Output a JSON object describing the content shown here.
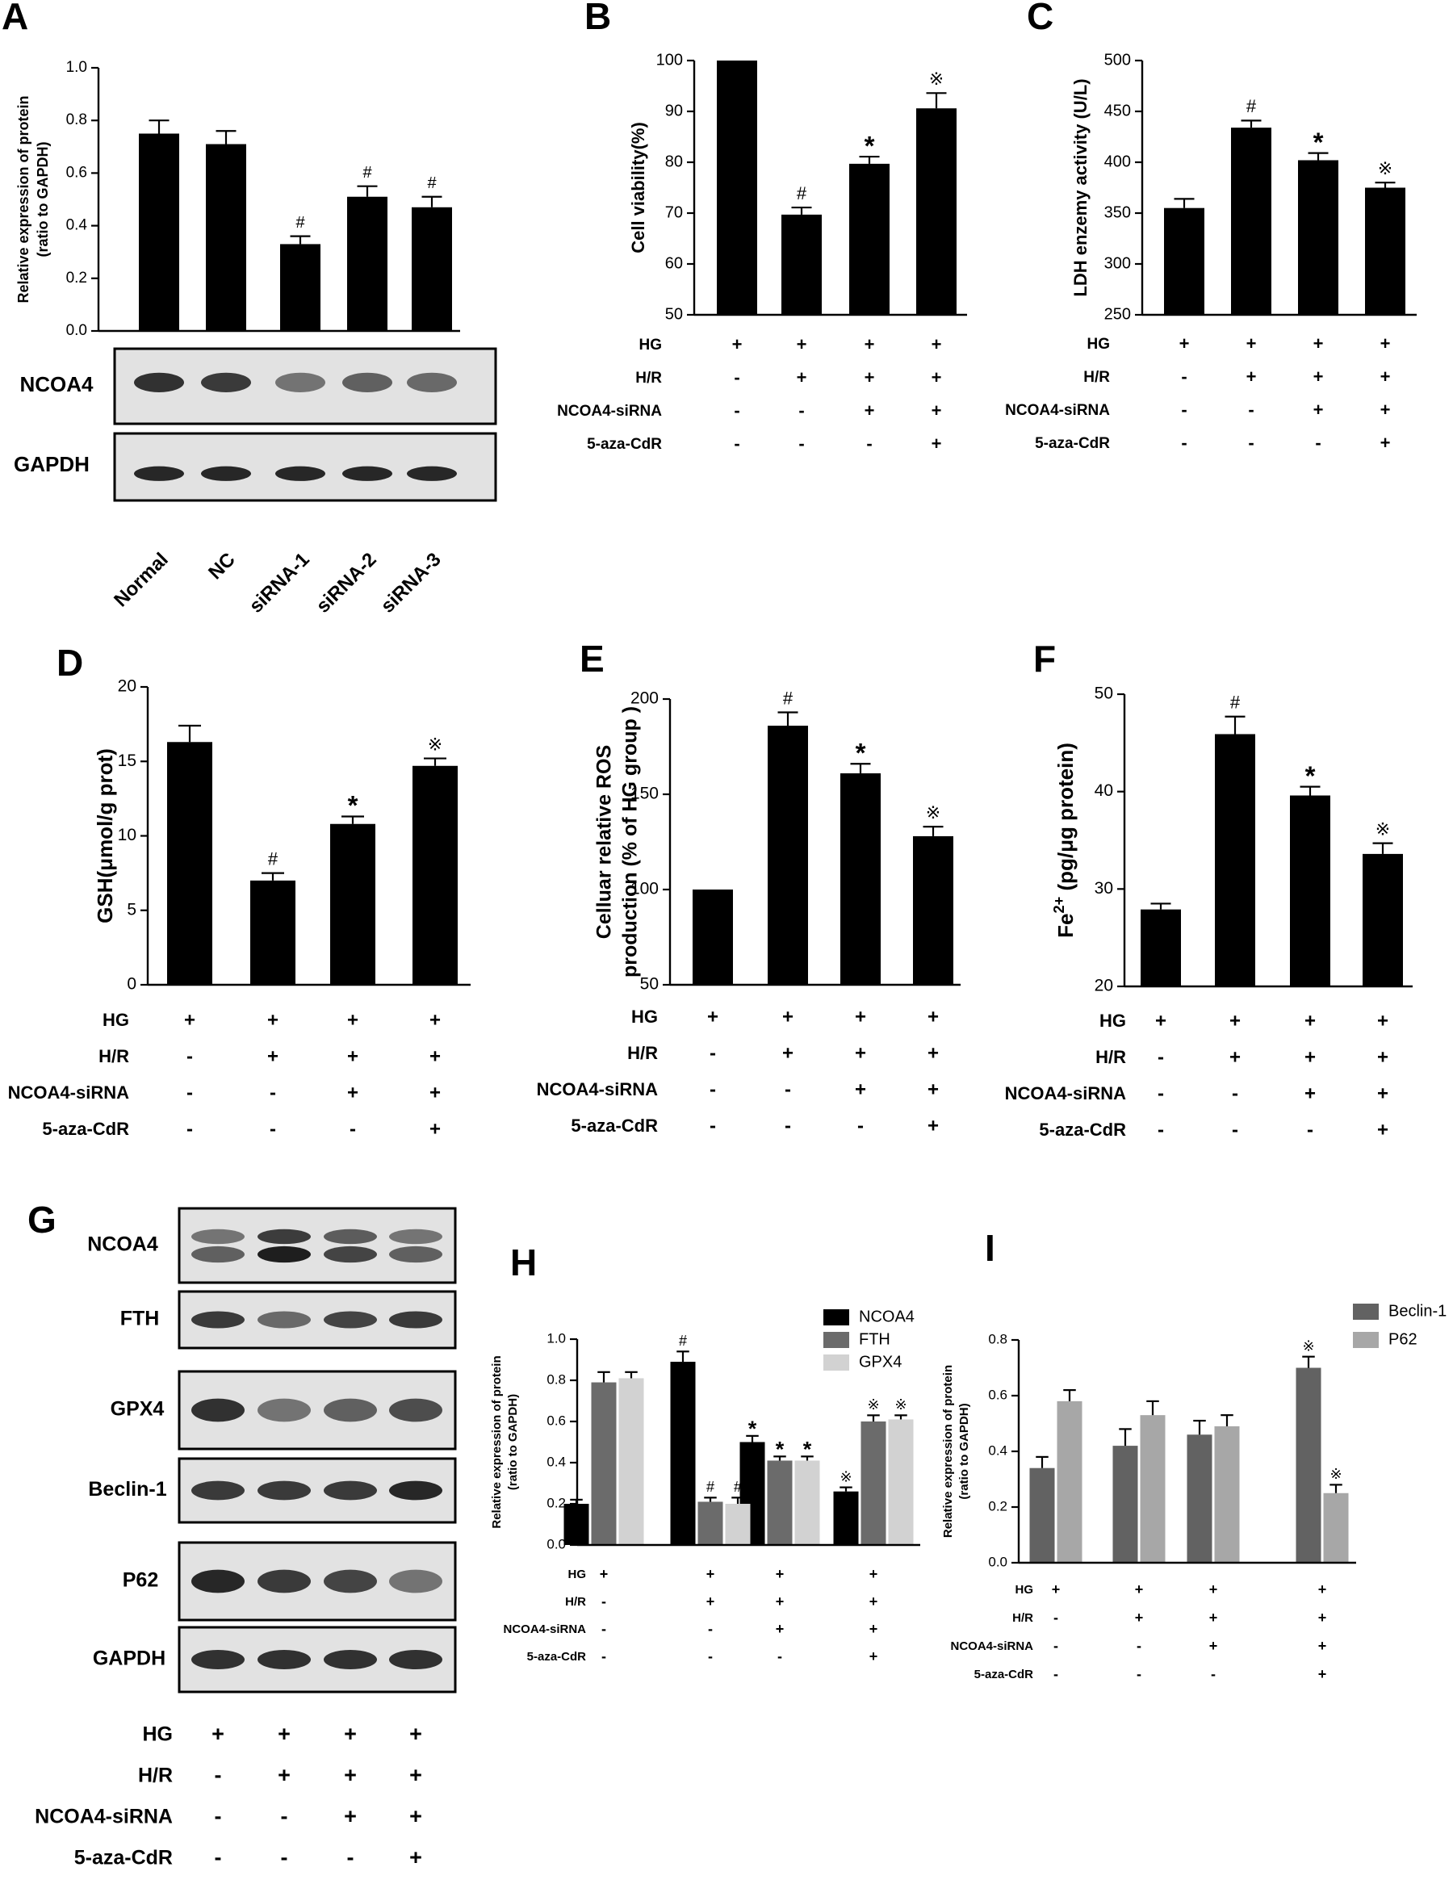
{
  "chart_data": [
    {
      "panel": "A",
      "type": "bar",
      "ylabel_lines": [
        "Relative expression of protein",
        "(ratio to GAPDH)"
      ],
      "ylim": [
        0,
        1.0
      ],
      "yticks": [
        "0.0",
        "0.2",
        "0.4",
        "0.6",
        "0.8",
        "1.0"
      ],
      "categories": [
        "Normal",
        "NC",
        "siRNA-1",
        "siRNA-2",
        "siRNA-3"
      ],
      "values": [
        0.75,
        0.71,
        0.33,
        0.51,
        0.47
      ],
      "errors": [
        0.05,
        0.05,
        0.03,
        0.04,
        0.04
      ],
      "annotations": [
        "",
        "",
        "#",
        "#",
        "#"
      ],
      "color": "#000000",
      "blots": [
        {
          "label": "NCOA4",
          "intensity": [
            0.85,
            0.8,
            0.5,
            0.6,
            0.55
          ]
        },
        {
          "label": "GAPDH",
          "intensity": [
            0.9,
            0.9,
            0.9,
            0.9,
            0.9
          ]
        }
      ]
    },
    {
      "panel": "B",
      "type": "bar",
      "ylabel": "Cell viability(%)",
      "ylim": [
        50,
        100
      ],
      "yticks": [
        "50",
        "60",
        "70",
        "80",
        "90",
        "100"
      ],
      "values": [
        100,
        69.7,
        79.7,
        90.6
      ],
      "errors": [
        0,
        1.4,
        1.4,
        3
      ],
      "annotations": [
        "",
        "#",
        "*",
        "※"
      ],
      "color": "#000000",
      "conditions": [
        {
          "label": "HG",
          "marks": [
            "+",
            "+",
            "+",
            "+"
          ]
        },
        {
          "label": "H/R",
          "marks": [
            "-",
            "+",
            "+",
            "+"
          ]
        },
        {
          "label": "NCOA4-siRNA",
          "marks": [
            "-",
            "-",
            "+",
            "+"
          ]
        },
        {
          "label": "5-aza-CdR",
          "marks": [
            "-",
            "-",
            "-",
            "+"
          ]
        }
      ]
    },
    {
      "panel": "C",
      "type": "bar",
      "ylabel": "LDH enzemy activity (U/L)",
      "ylim": [
        250,
        500
      ],
      "yticks": [
        "250",
        "300",
        "350",
        "400",
        "450",
        "500"
      ],
      "values": [
        355,
        434,
        402,
        375
      ],
      "errors": [
        9,
        7,
        7,
        5
      ],
      "annotations": [
        "",
        "#",
        "*",
        "※"
      ],
      "color": "#000000",
      "conditions": [
        {
          "label": "HG",
          "marks": [
            "+",
            "+",
            "+",
            "+"
          ]
        },
        {
          "label": "H/R",
          "marks": [
            "-",
            "+",
            "+",
            "+"
          ]
        },
        {
          "label": "NCOA4-siRNA",
          "marks": [
            "-",
            "-",
            "+",
            "+"
          ]
        },
        {
          "label": "5-aza-CdR",
          "marks": [
            "-",
            "-",
            "-",
            "+"
          ]
        }
      ]
    },
    {
      "panel": "D",
      "type": "bar",
      "ylabel": "GSH(μmol/g prot)",
      "ylim": [
        0,
        20
      ],
      "yticks": [
        "0",
        "5",
        "10",
        "15",
        "20"
      ],
      "values": [
        16.3,
        7.0,
        10.8,
        14.7
      ],
      "errors": [
        1.1,
        0.5,
        0.5,
        0.5
      ],
      "annotations": [
        "",
        "#",
        "*",
        "※"
      ],
      "color": "#000000",
      "conditions": [
        {
          "label": "HG",
          "marks": [
            "+",
            "+",
            "+",
            "+"
          ]
        },
        {
          "label": "H/R",
          "marks": [
            "-",
            "+",
            "+",
            "+"
          ]
        },
        {
          "label": "NCOA4-siRNA",
          "marks": [
            "-",
            "-",
            "+",
            "+"
          ]
        },
        {
          "label": "5-aza-CdR",
          "marks": [
            "-",
            "-",
            "-",
            "+"
          ]
        }
      ]
    },
    {
      "panel": "E",
      "type": "bar",
      "ylabel_lines": [
        "Celluar relative ROS",
        "production (% of HG group )"
      ],
      "ylim": [
        50,
        200
      ],
      "yticks": [
        "50",
        "100",
        "150",
        "200"
      ],
      "values": [
        100,
        186,
        161,
        128
      ],
      "errors": [
        0,
        7,
        5,
        5
      ],
      "annotations": [
        "",
        "#",
        "*",
        "※"
      ],
      "color": "#000000",
      "conditions": [
        {
          "label": "HG",
          "marks": [
            "+",
            "+",
            "+",
            "+"
          ]
        },
        {
          "label": "H/R",
          "marks": [
            "-",
            "+",
            "+",
            "+"
          ]
        },
        {
          "label": "NCOA4-siRNA",
          "marks": [
            "-",
            "-",
            "+",
            "+"
          ]
        },
        {
          "label": "5-aza-CdR",
          "marks": [
            "-",
            "-",
            "-",
            "+"
          ]
        }
      ]
    },
    {
      "panel": "F",
      "type": "bar",
      "ylabel_parts": [
        "Fe",
        "2+",
        " (pg/μg protein)"
      ],
      "ylim": [
        20,
        50
      ],
      "yticks": [
        "20",
        "30",
        "40",
        "50"
      ],
      "values": [
        27.9,
        45.9,
        39.6,
        33.6
      ],
      "errors": [
        0.6,
        1.8,
        0.9,
        1.1
      ],
      "annotations": [
        "",
        "#",
        "*",
        "※"
      ],
      "color": "#000000",
      "conditions": [
        {
          "label": "HG",
          "marks": [
            "+",
            "+",
            "+",
            "+"
          ]
        },
        {
          "label": "H/R",
          "marks": [
            "-",
            "+",
            "+",
            "+"
          ]
        },
        {
          "label": "NCOA4-siRNA",
          "marks": [
            "-",
            "-",
            "+",
            "+"
          ]
        },
        {
          "label": "5-aza-CdR",
          "marks": [
            "-",
            "-",
            "-",
            "+"
          ]
        }
      ]
    },
    {
      "panel": "G",
      "type": "blot",
      "blots": [
        {
          "label": "NCOA4",
          "intensity": [
            0.6,
            0.95,
            0.75,
            0.6
          ]
        },
        {
          "label": "FTH",
          "intensity": [
            0.8,
            0.55,
            0.75,
            0.8
          ]
        },
        {
          "label": "GPX4",
          "intensity": [
            0.85,
            0.5,
            0.6,
            0.7
          ]
        },
        {
          "label": "Beclin-1",
          "intensity": [
            0.8,
            0.8,
            0.8,
            0.9
          ]
        },
        {
          "label": "P62",
          "intensity": [
            0.9,
            0.8,
            0.75,
            0.5
          ]
        },
        {
          "label": "GAPDH",
          "intensity": [
            0.85,
            0.85,
            0.85,
            0.85
          ]
        }
      ],
      "conditions": [
        {
          "label": "HG",
          "marks": [
            "+",
            "+",
            "+",
            "+"
          ]
        },
        {
          "label": "H/R",
          "marks": [
            "-",
            "+",
            "+",
            "+"
          ]
        },
        {
          "label": "NCOA4-siRNA",
          "marks": [
            "-",
            "-",
            "+",
            "+"
          ]
        },
        {
          "label": "5-aza-CdR",
          "marks": [
            "-",
            "-",
            "-",
            "+"
          ]
        }
      ]
    },
    {
      "panel": "H",
      "type": "bar",
      "ylabel_lines": [
        "Relative expression of protein",
        "(ratio to GAPDH)"
      ],
      "ylim": [
        0,
        1.0
      ],
      "yticks": [
        "0.0",
        "0.2",
        "0.4",
        "0.6",
        "0.8",
        "1.0"
      ],
      "legend_position": "top-right",
      "series": [
        {
          "name": "NCOA4",
          "color": "#000000",
          "values": [
            0.2,
            0.89,
            0.5,
            0.26
          ],
          "errors": [
            0.02,
            0.05,
            0.03,
            0.02
          ],
          "annotations": [
            "",
            "#",
            "*",
            "※"
          ]
        },
        {
          "name": "FTH",
          "color": "#6b6b6b",
          "values": [
            0.79,
            0.21,
            0.41,
            0.6
          ],
          "errors": [
            0.05,
            0.02,
            0.02,
            0.03
          ],
          "annotations": [
            "",
            "#",
            "*",
            "※"
          ]
        },
        {
          "name": "GPX4",
          "color": "#d2d2d2",
          "values": [
            0.81,
            0.2,
            0.41,
            0.61
          ],
          "errors": [
            0.03,
            0.03,
            0.02,
            0.02
          ],
          "annotations": [
            "",
            "#",
            "*",
            "※"
          ]
        }
      ],
      "conditions": [
        {
          "label": "HG",
          "marks": [
            "+",
            "+",
            "+",
            "+"
          ]
        },
        {
          "label": "H/R",
          "marks": [
            "-",
            "+",
            "+",
            "+"
          ]
        },
        {
          "label": "NCOA4-siRNA",
          "marks": [
            "-",
            "-",
            "+",
            "+"
          ]
        },
        {
          "label": "5-aza-CdR",
          "marks": [
            "-",
            "-",
            "-",
            "+"
          ]
        }
      ]
    },
    {
      "panel": "I",
      "type": "bar",
      "ylabel_lines": [
        "Relative expression of protein",
        "(ratio to GAPDH)"
      ],
      "ylim": [
        0,
        0.8
      ],
      "yticks": [
        "0.0",
        "0.2",
        "0.4",
        "0.6",
        "0.8"
      ],
      "legend_position": "top-right",
      "series": [
        {
          "name": "Beclin-1",
          "color": "#626262",
          "values": [
            0.34,
            0.42,
            0.46,
            0.7
          ],
          "errors": [
            0.04,
            0.06,
            0.05,
            0.04
          ],
          "annotations": [
            "",
            "",
            "",
            "※"
          ]
        },
        {
          "name": "P62",
          "color": "#a7a7a7",
          "values": [
            0.58,
            0.53,
            0.49,
            0.25
          ],
          "errors": [
            0.04,
            0.05,
            0.04,
            0.03
          ],
          "annotations": [
            "",
            "",
            "",
            "※"
          ]
        }
      ],
      "conditions": [
        {
          "label": "HG",
          "marks": [
            "+",
            "+",
            "+",
            "+"
          ]
        },
        {
          "label": "H/R",
          "marks": [
            "-",
            "+",
            "+",
            "+"
          ]
        },
        {
          "label": "NCOA4-siRNA",
          "marks": [
            "-",
            "-",
            "+",
            "+"
          ]
        },
        {
          "label": "5-aza-CdR",
          "marks": [
            "-",
            "-",
            "-",
            "+"
          ]
        }
      ]
    }
  ]
}
